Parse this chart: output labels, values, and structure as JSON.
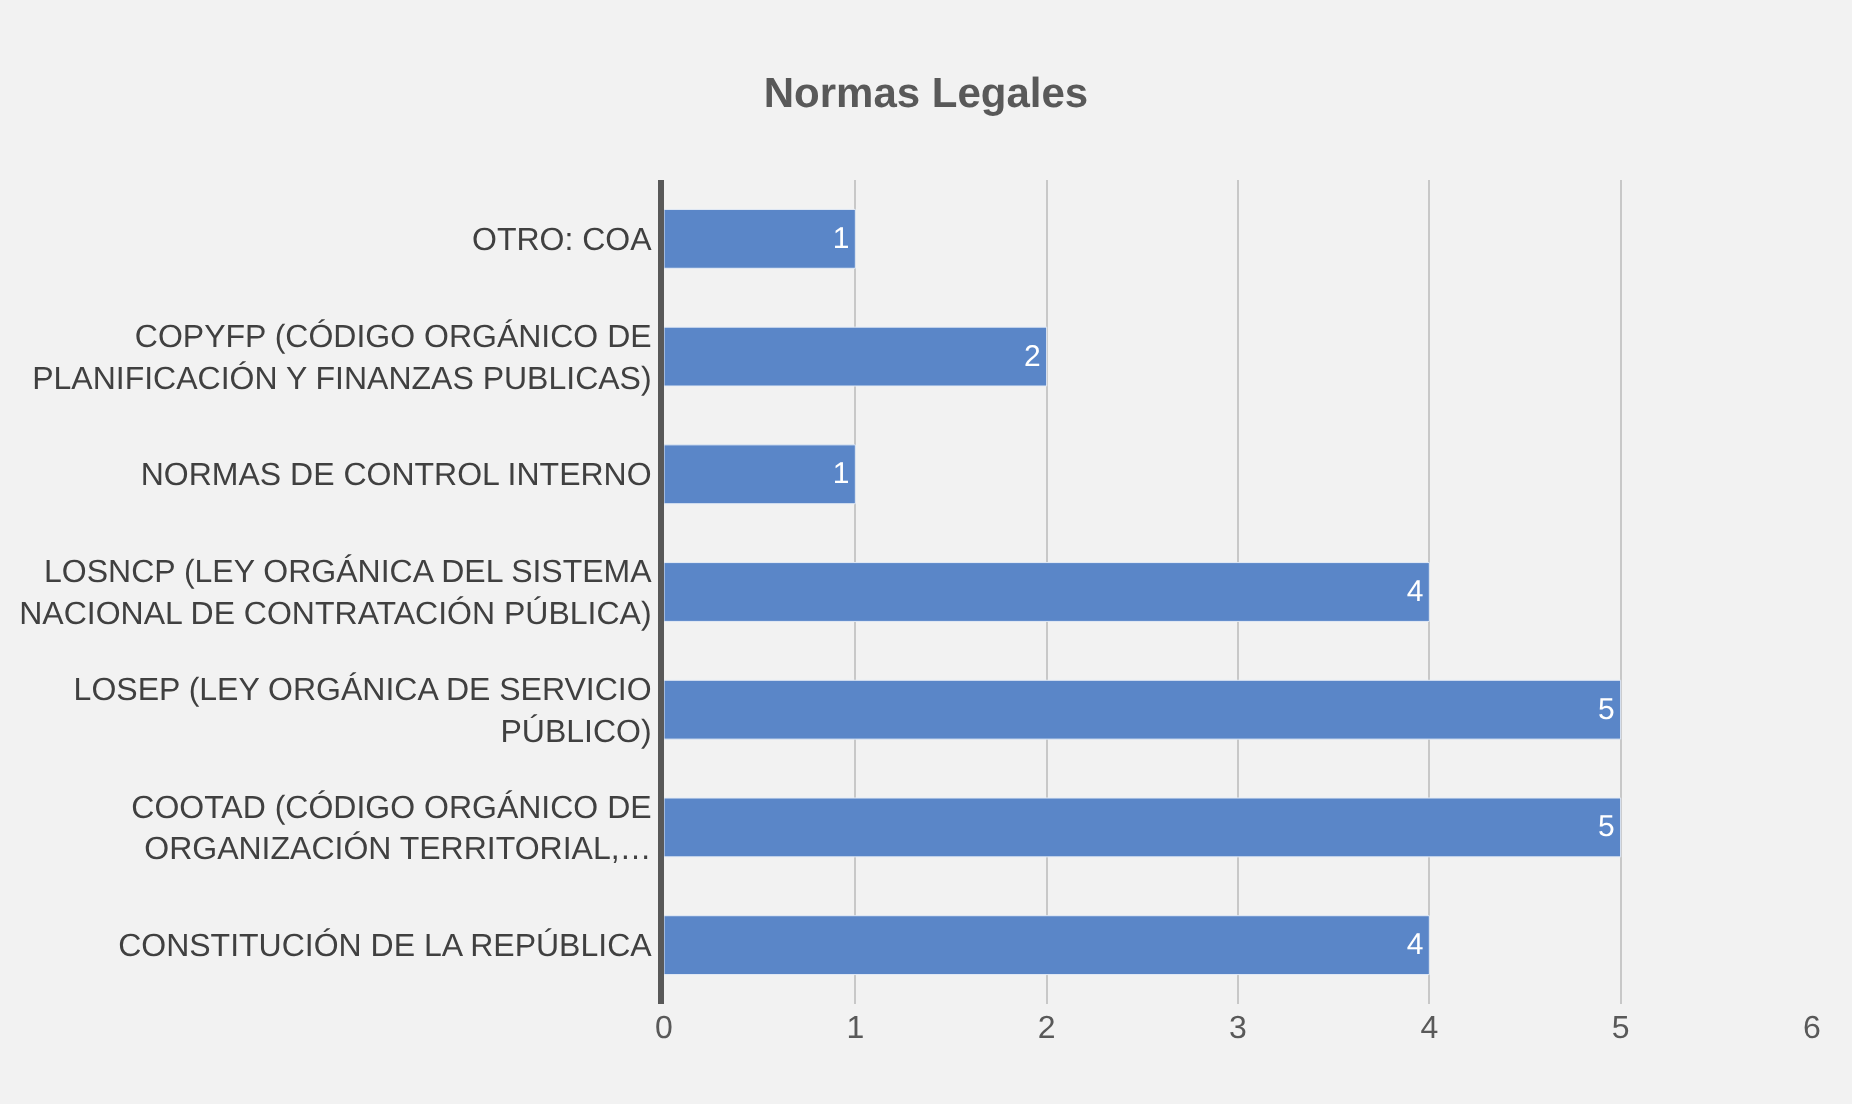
{
  "chart_data": {
    "type": "bar",
    "orientation": "horizontal",
    "title": "Normas Legales",
    "categories": [
      "OTRO: COA",
      "COPYFP (CÓDIGO ORGÁNICO DE\nPLANIFICACIÓN Y FINANZAS PUBLICAS)",
      "NORMAS DE CONTROL INTERNO",
      "LOSNCP (LEY ORGÁNICA DEL SISTEMA\nNACIONAL DE CONTRATACIÓN PÚBLICA)",
      "LOSEP (LEY ORGÁNICA DE SERVICIO\nPÚBLICO)",
      "COOTAD (CÓDIGO ORGÁNICO DE\nORGANIZACIÓN TERRITORIAL,…",
      "CONSTITUCIÓN DE LA REPÚBLICA"
    ],
    "values": [
      1,
      2,
      1,
      4,
      5,
      5,
      4
    ],
    "color": "#5a86c8",
    "xlim": [
      0,
      6
    ],
    "xticks": [
      0,
      1,
      2,
      3,
      4,
      5,
      6
    ],
    "grid": "x",
    "data_labels": true,
    "legend": false
  }
}
